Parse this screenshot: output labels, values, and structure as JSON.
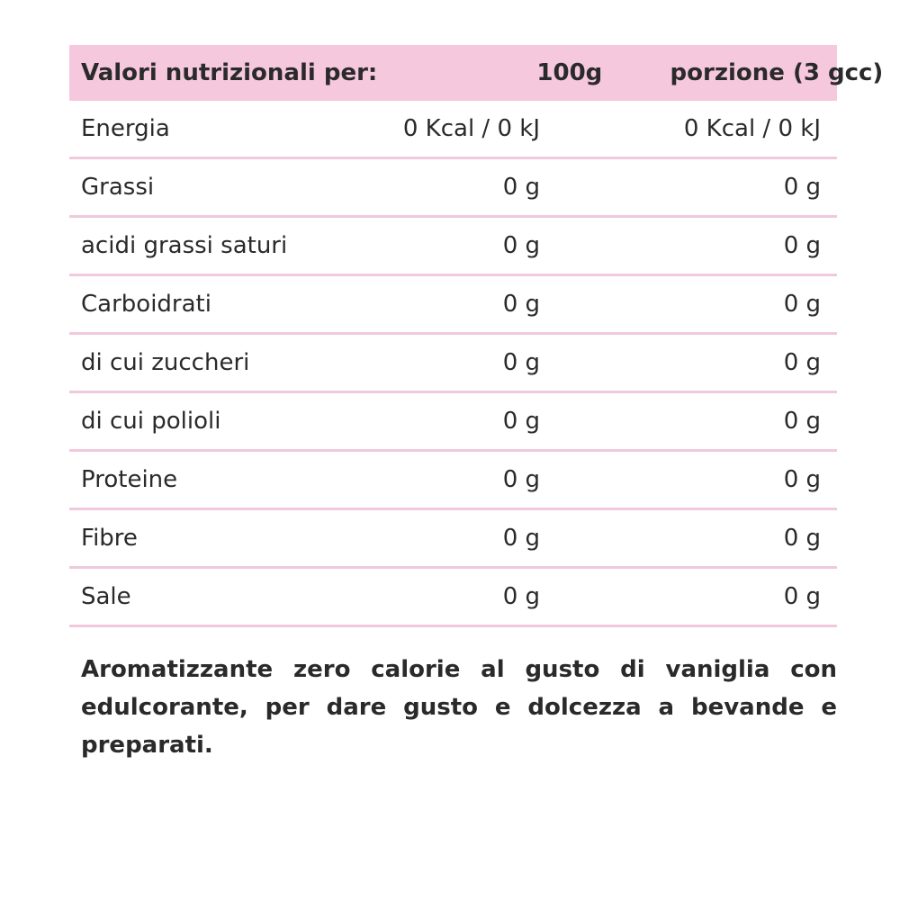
{
  "page": {
    "background_color": "#ffffff",
    "text_color": "#2b2a2b",
    "header_pink": "#f5c8de",
    "divider_pink": "#f1c9dc"
  },
  "table": {
    "header": {
      "col1": "Valori nutrizionali per:",
      "col2": "100g",
      "col3": "porzione (3 gcc)"
    },
    "rows": [
      {
        "label": "Energia",
        "per_100g": "0 Kcal / 0 kJ",
        "per_portion": "0 Kcal / 0 kJ"
      },
      {
        "label": "Grassi",
        "per_100g": "0 g",
        "per_portion": "0 g"
      },
      {
        "label": "acidi grassi saturi",
        "per_100g": "0 g",
        "per_portion": "0 g"
      },
      {
        "label": "Carboidrati",
        "per_100g": "0 g",
        "per_portion": "0 g"
      },
      {
        "label": "di cui zuccheri",
        "per_100g": "0 g",
        "per_portion": "0 g"
      },
      {
        "label": "di cui polioli",
        "per_100g": "0 g",
        "per_portion": "0 g"
      },
      {
        "label": "Proteine",
        "per_100g": "0 g",
        "per_portion": "0 g"
      },
      {
        "label": "Fibre",
        "per_100g": "0 g",
        "per_portion": "0 g"
      },
      {
        "label": "Sale",
        "per_100g": "0 g",
        "per_portion": "0 g"
      }
    ]
  },
  "description": "Aromatizzante zero calorie al gusto di vaniglia con edulcorante, per dare gusto e dolcezza a bevande e preparati."
}
